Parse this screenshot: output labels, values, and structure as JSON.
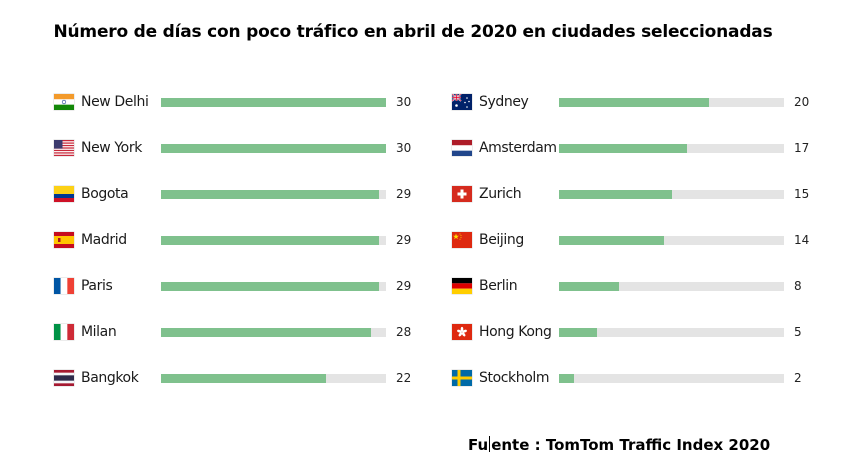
{
  "chart_data": {
    "type": "bar",
    "orientation": "horizontal",
    "title": "Número de días con poco tráfico en abril de 2020 en ciudades seleccionadas",
    "xlim": [
      0,
      30
    ],
    "grid": false,
    "bar_color": "#7fc18d",
    "track_color": "#e4e4e4",
    "columns": [
      [
        {
          "city": "New Delhi",
          "value": 30,
          "flag": "india"
        },
        {
          "city": "New York",
          "value": 30,
          "flag": "usa"
        },
        {
          "city": "Bogota",
          "value": 29,
          "flag": "colombia"
        },
        {
          "city": "Madrid",
          "value": 29,
          "flag": "spain"
        },
        {
          "city": "Paris",
          "value": 29,
          "flag": "france"
        },
        {
          "city": "Milan",
          "value": 28,
          "flag": "italy"
        },
        {
          "city": "Bangkok",
          "value": 22,
          "flag": "thailand"
        }
      ],
      [
        {
          "city": "Sydney",
          "value": 20,
          "flag": "australia"
        },
        {
          "city": "Amsterdam",
          "value": 17,
          "flag": "netherlands"
        },
        {
          "city": "Zurich",
          "value": 15,
          "flag": "switzerland"
        },
        {
          "city": "Beijing",
          "value": 14,
          "flag": "china"
        },
        {
          "city": "Berlin",
          "value": 8,
          "flag": "germany"
        },
        {
          "city": "Hong Kong",
          "value": 5,
          "flag": "hong-kong"
        },
        {
          "city": "Stockholm",
          "value": 2,
          "flag": "sweden"
        }
      ]
    ]
  },
  "source": {
    "prefix": "Fu",
    "suffix": "ente : TomTom Traffic Index 2020"
  }
}
